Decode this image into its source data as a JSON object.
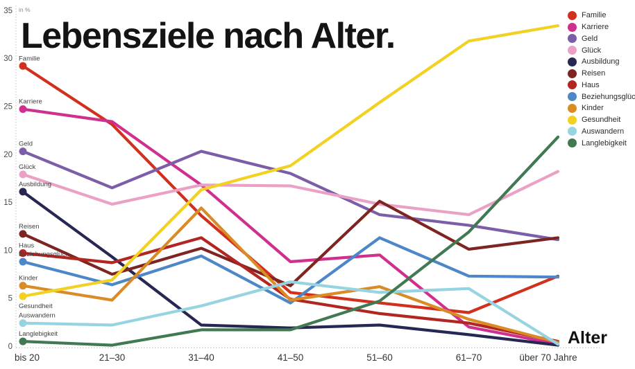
{
  "title": "Lebensziele nach Alter.",
  "unit_label": "in %",
  "x_axis_label": "Alter",
  "chart_data": {
    "type": "line",
    "categories": [
      "bis 20",
      "21–30",
      "31–40",
      "41–50",
      "51–60",
      "61–70",
      "über 70 Jahre"
    ],
    "yticks": [
      0,
      5,
      10,
      15,
      20,
      25,
      30,
      35
    ],
    "ylim": [
      0,
      35
    ],
    "grid": false,
    "legend_position": "top-right",
    "series_labels_at_line_start": true,
    "series": [
      {
        "name": "Familie",
        "color": "#d2301f",
        "label_position": "above",
        "values": [
          29.2,
          23.1,
          13.6,
          5.6,
          4.5,
          3.5,
          7.3
        ]
      },
      {
        "name": "Karriere",
        "color": "#cf2f8d",
        "label_position": "above",
        "values": [
          24.7,
          23.4,
          16.8,
          8.8,
          9.5,
          2.0,
          0.2
        ]
      },
      {
        "name": "Geld",
        "color": "#7b5ea7",
        "label_position": "above",
        "values": [
          20.3,
          16.5,
          20.3,
          18.0,
          13.7,
          12.6,
          11.1
        ]
      },
      {
        "name": "Glück",
        "color": "#eba0c5",
        "label_position": "above",
        "values": [
          17.9,
          14.8,
          16.8,
          16.7,
          14.8,
          13.7,
          18.2
        ]
      },
      {
        "name": "Ausbildung",
        "color": "#272753",
        "label_position": "above",
        "values": [
          16.1,
          9.3,
          2.2,
          1.9,
          2.2,
          1.2,
          0.1
        ]
      },
      {
        "name": "Reisen",
        "color": "#7e2521",
        "label_position": "above",
        "values": [
          11.7,
          7.5,
          10.2,
          6.3,
          15.1,
          10.1,
          11.3
        ]
      },
      {
        "name": "Haus",
        "color": "#b22622",
        "label_position": "above",
        "values": [
          9.7,
          8.7,
          11.3,
          4.9,
          3.4,
          2.4,
          0.5
        ]
      },
      {
        "name": "Beziehungsglück",
        "color": "#4d87c7",
        "label_position": "above",
        "values": [
          8.8,
          6.4,
          9.4,
          4.5,
          11.3,
          7.3,
          7.2
        ]
      },
      {
        "name": "Kinder",
        "color": "#d98c26",
        "label_position": "above",
        "values": [
          6.3,
          4.8,
          14.4,
          4.8,
          6.2,
          2.8,
          0.4
        ]
      },
      {
        "name": "Gesundheit",
        "color": "#f2d122",
        "label_position": "below",
        "values": [
          5.2,
          6.9,
          16.3,
          18.8,
          25.4,
          31.8,
          33.4
        ]
      },
      {
        "name": "Auswandern",
        "color": "#96d4e2",
        "label_position": "above",
        "values": [
          2.4,
          2.2,
          4.2,
          6.7,
          5.6,
          6.0,
          0.2
        ]
      },
      {
        "name": "Langlebigkeit",
        "color": "#417953",
        "label_position": "above",
        "values": [
          0.5,
          0.1,
          1.7,
          1.7,
          4.7,
          11.9,
          21.8
        ]
      }
    ]
  }
}
